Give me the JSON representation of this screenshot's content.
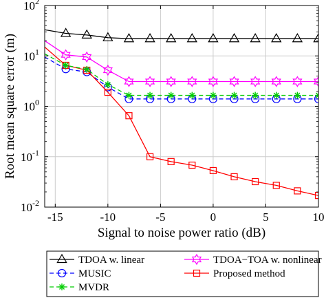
{
  "chart_data": {
    "type": "line",
    "xlabel": "Signal to noise power ratio (dB)",
    "ylabel": "Root mean square error (m)",
    "xlim": [
      -16,
      10
    ],
    "ylim": [
      0.01,
      100
    ],
    "yscale": "log",
    "grid": true,
    "x_ticks": [
      -15,
      -10,
      -5,
      0,
      5,
      10
    ],
    "x_tick_labels": [
      "-15",
      "-10",
      "-5",
      "0",
      "5",
      "10"
    ],
    "y_ticks": [
      0.01,
      0.1,
      1,
      10,
      100
    ],
    "y_tick_labels": [
      {
        "base": "10",
        "exp": "-2"
      },
      {
        "base": "10",
        "exp": "-1"
      },
      {
        "base": "10",
        "exp": "0"
      },
      {
        "base": "10",
        "exp": "1"
      },
      {
        "base": "10",
        "exp": "2"
      }
    ],
    "legend_position": "bottom-outside",
    "series": [
      {
        "name": "TDOA w. linear",
        "color": "#000000",
        "line": "solid",
        "marker": "triangle",
        "x": [
          -16,
          -14,
          -12,
          -10,
          -8,
          -6,
          -4,
          -2,
          0,
          2,
          4,
          6,
          8,
          10
        ],
        "y": [
          33,
          28,
          26,
          23,
          22,
          22,
          22,
          22,
          22,
          22,
          22,
          22,
          22,
          22
        ],
        "marker_x": [
          -14,
          -12,
          -10,
          -8,
          -6,
          -4,
          -2,
          0,
          2,
          4,
          6,
          8,
          10
        ]
      },
      {
        "name": "TDOA−TOA w. nonlinear",
        "color": "#ff00ff",
        "line": "solid",
        "marker": "hexagram",
        "x": [
          -16,
          -14,
          -12,
          -10,
          -8,
          -6,
          -4,
          -2,
          0,
          2,
          4,
          6,
          8,
          10
        ],
        "y": [
          20,
          10.5,
          9.5,
          5.2,
          3.1,
          3.1,
          3.1,
          3.1,
          3.1,
          3.1,
          3.1,
          3.1,
          3.1,
          3.1
        ],
        "marker_x": [
          -14,
          -12,
          -10,
          -8,
          -6,
          -4,
          -2,
          0,
          2,
          4,
          6,
          8,
          10
        ]
      },
      {
        "name": "MUSIC",
        "color": "#0000ff",
        "line": "dashed",
        "marker": "circle",
        "x": [
          -16,
          -14,
          -12,
          -10,
          -8,
          -6,
          -4,
          -2,
          0,
          2,
          4,
          6,
          8,
          10
        ],
        "y": [
          9.5,
          5.5,
          4.8,
          2.4,
          1.4,
          1.4,
          1.4,
          1.4,
          1.4,
          1.4,
          1.4,
          1.4,
          1.4,
          1.4
        ],
        "marker_x": [
          -14,
          -12,
          -10,
          -8,
          -6,
          -4,
          -2,
          0,
          2,
          4,
          6,
          8,
          10
        ]
      },
      {
        "name": "Proposed method",
        "color": "#ff0000",
        "line": "solid",
        "marker": "square",
        "x": [
          -16,
          -14,
          -12,
          -10,
          -8,
          -6,
          -4,
          -2,
          0,
          2,
          4,
          6,
          8,
          10
        ],
        "y": [
          15,
          6.5,
          5.2,
          1.9,
          0.65,
          0.1,
          0.08,
          0.068,
          0.053,
          0.04,
          0.032,
          0.027,
          0.021,
          0.017
        ],
        "marker_x": [
          -14,
          -12,
          -10,
          -8,
          -6,
          -4,
          -2,
          0,
          2,
          4,
          6,
          8,
          10
        ]
      },
      {
        "name": "MVDR",
        "color": "#00cc00",
        "line": "dashed",
        "marker": "asterisk",
        "x": [
          -16,
          -14,
          -12,
          -10,
          -8,
          -6,
          -4,
          -2,
          0,
          2,
          4,
          6,
          8,
          10
        ],
        "y": [
          11,
          6.5,
          5.4,
          2.7,
          1.65,
          1.65,
          1.65,
          1.65,
          1.65,
          1.65,
          1.65,
          1.65,
          1.65,
          1.65
        ],
        "marker_x": [
          -14,
          -12,
          -10,
          -8,
          -6,
          -4,
          -2,
          0,
          2,
          4,
          6,
          8,
          10
        ]
      }
    ],
    "legend": [
      [
        "TDOA w. linear",
        "TDOA−TOA w. nonlinear"
      ],
      [
        "MUSIC",
        "Proposed method"
      ],
      [
        "MVDR"
      ]
    ]
  }
}
